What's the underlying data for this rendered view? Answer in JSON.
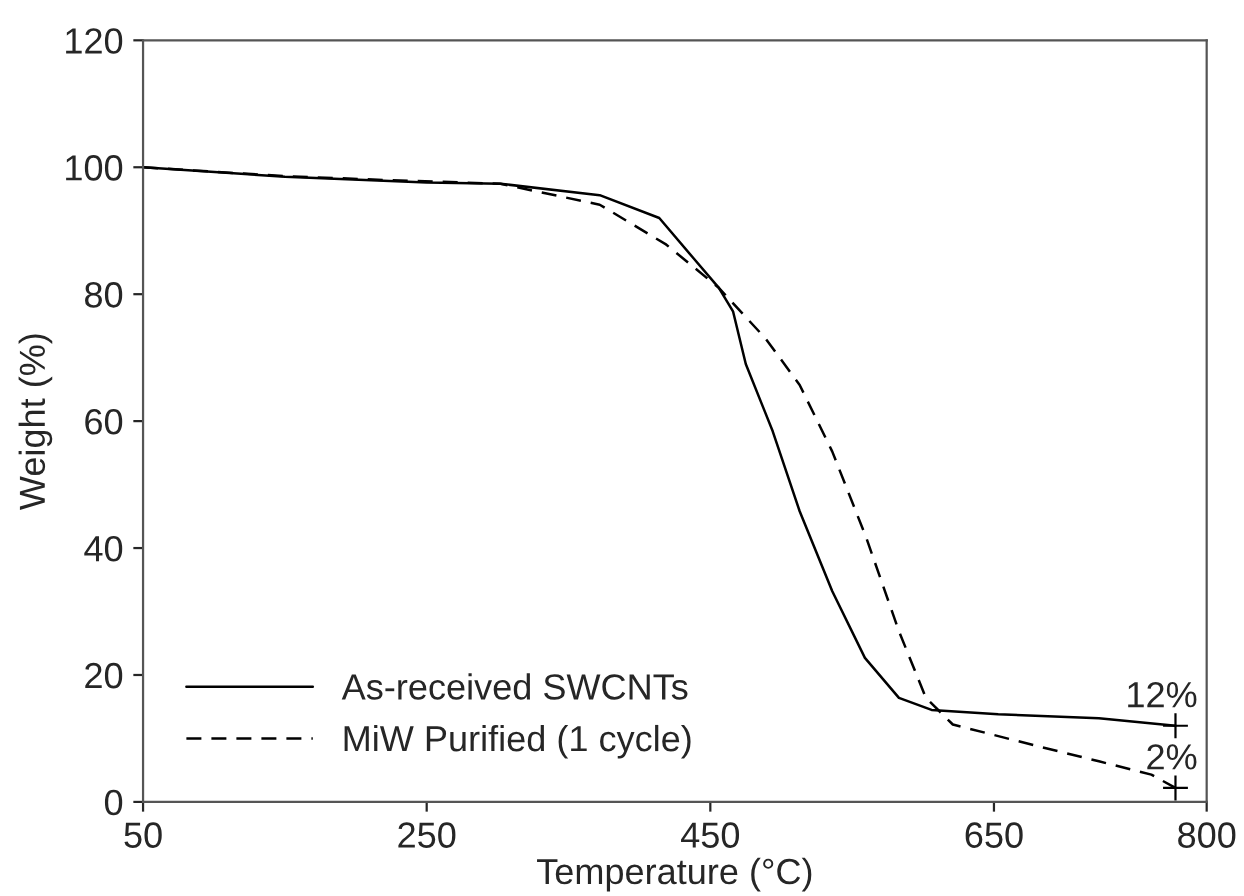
{
  "chart_data": {
    "type": "line",
    "xlabel": "Temperature (°C)",
    "ylabel": "Weight (%)",
    "xlim": [
      50,
      800
    ],
    "xticks": [
      50,
      250,
      450,
      650,
      800
    ],
    "ylim": [
      0,
      120
    ],
    "yticks": [
      0,
      20,
      40,
      60,
      80,
      100,
      120
    ],
    "grid": false,
    "legend": "bottom left",
    "series": [
      {
        "name": "As-received SWCNTs",
        "color": "#000000",
        "line_style": "solid",
        "x": [
          50,
          150,
          250,
          302,
          372,
          414,
          438,
          456,
          466,
          475,
          494,
          513,
          536,
          559,
          583,
          606,
          653,
          724,
          778
        ],
        "values": [
          100,
          98.5,
          97.6,
          97.4,
          95.6,
          92,
          85.7,
          81,
          77.3,
          69,
          58.4,
          45.8,
          33.2,
          22.7,
          16.4,
          14.5,
          13.8,
          13.2,
          12
        ]
      },
      {
        "name": "MiW Purified (1 cycle)",
        "color": "#000000",
        "line_style": "dashed",
        "x": [
          50,
          150,
          220,
          302,
          372,
          419,
          456,
          489,
          513,
          536,
          560,
          583,
          602,
          621,
          677,
          724,
          761,
          778
        ],
        "values": [
          100,
          98.6,
          98,
          97.4,
          94.1,
          87.8,
          81,
          73,
          65.7,
          55.2,
          41.6,
          26.9,
          16.4,
          12.2,
          9,
          6.4,
          4.3,
          2.2
        ]
      },
      {
        "type": "scatter",
        "color": "#000000",
        "marker": "cross",
        "x": [
          778,
          778
        ],
        "values": [
          12,
          2.2
        ]
      }
    ],
    "annotations": [
      {
        "text": "12%",
        "x": 778,
        "y": 12
      },
      {
        "text": "2%",
        "x": 778,
        "y": 2.2
      }
    ]
  }
}
